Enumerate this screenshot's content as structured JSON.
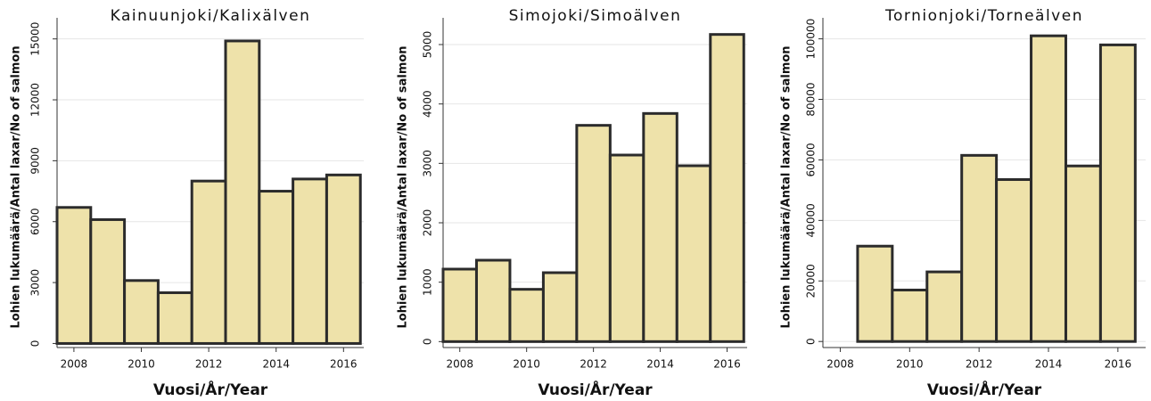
{
  "chart_data": [
    {
      "type": "bar",
      "title": "Kainuunjoki/Kalixälven",
      "xlabel": "Vuosi/År/Year",
      "ylabel": "Lohien lukumäärä/Antal laxar/No of salmon",
      "x": [
        2008,
        2009,
        2010,
        2011,
        2012,
        2013,
        2014,
        2015,
        2016
      ],
      "values": [
        6700,
        6100,
        3100,
        2500,
        8000,
        14900,
        7500,
        8100,
        8300
      ],
      "color": "#eee2aa",
      "xlim": [
        2007.5,
        2016.6
      ],
      "xticks": [
        2008,
        2010,
        2012,
        2014,
        2016
      ],
      "ylim": [
        -200,
        15600
      ],
      "yticks": [
        0,
        3000,
        6000,
        9000,
        12000,
        15000
      ],
      "grid": true
    },
    {
      "type": "bar",
      "title": "Simojoki/Simoälven",
      "xlabel": "Vuosi/År/Year",
      "ylabel": "Lohien lukumäärä/Antal laxar/No of salmon",
      "x": [
        2008,
        2009,
        2010,
        2011,
        2012,
        2013,
        2014,
        2015,
        2016
      ],
      "values": [
        1220,
        1370,
        880,
        1160,
        3640,
        3140,
        3840,
        2960,
        5170
      ],
      "color": "#eee2aa",
      "xlim": [
        2007.5,
        2016.6
      ],
      "xticks": [
        2008,
        2010,
        2012,
        2014,
        2016
      ],
      "ylim": [
        -100,
        5300
      ],
      "yticks": [
        0,
        1000,
        2000,
        3000,
        4000,
        5000
      ],
      "grid": true
    },
    {
      "type": "bar",
      "title": "Tornionjoki/Torneälven",
      "xlabel": "Vuosi/År/Year",
      "ylabel": "Lohien lukumäärä/Antal laxar/No of salmon",
      "x": [
        2009,
        2010,
        2011,
        2012,
        2013,
        2014,
        2015,
        2016
      ],
      "values": [
        31500,
        17000,
        23000,
        61500,
        53500,
        101000,
        58000,
        98000
      ],
      "color": "#eee2aa",
      "xlim": [
        2007.5,
        2016.8
      ],
      "xticks": [
        2008,
        2010,
        2012,
        2014,
        2016
      ],
      "ylim": [
        -2000,
        104000
      ],
      "yticks": [
        0,
        20000,
        40000,
        60000,
        80000,
        100000
      ],
      "grid": true
    }
  ]
}
